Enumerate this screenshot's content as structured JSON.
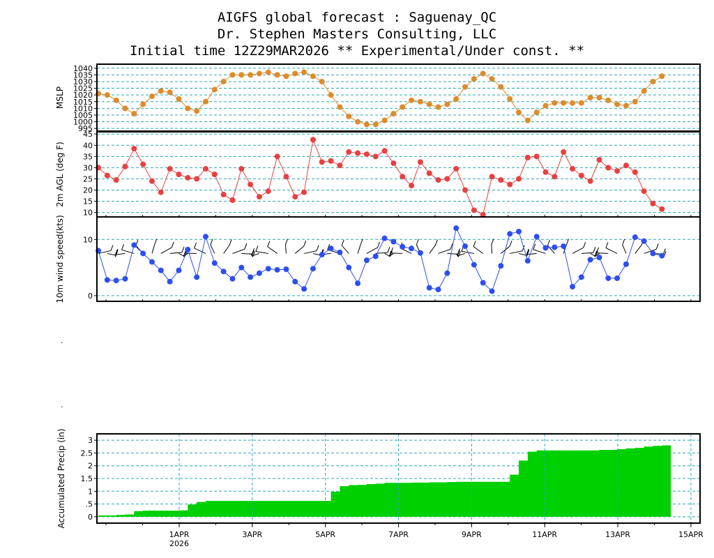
{
  "title": {
    "line1": "AIGFS global forecast : Saguenay_QC",
    "line2": "Dr. Stephen Masters Consulting, LLC",
    "line3": "Initial time 12Z29MAR2026  ** Experimental/Under const. **"
  },
  "colors": {
    "mslp": "#dc8c2c",
    "temp": "#e84040",
    "wind": "#2d4ef0",
    "precip": "#00d000",
    "grid": "#29a8b5",
    "frame": "#000000"
  },
  "stray_marks": [
    ".",
    "."
  ],
  "chart_data": [
    {
      "type": "line",
      "panel": "mslp",
      "ylabel": "MSLP",
      "ylim": [
        993,
        1043
      ],
      "yticks": [
        "995",
        "1000",
        "1005",
        "1010",
        "1015",
        "1020",
        "1025",
        "1030",
        "1035",
        "1040"
      ],
      "grid": true,
      "values": [
        1021,
        1020,
        1016,
        1010,
        1006,
        1013,
        1019,
        1023,
        1022,
        1017,
        1010,
        1008,
        1015,
        1024,
        1030,
        1035,
        1035,
        1035,
        1036,
        1037,
        1035,
        1034,
        1036,
        1037,
        1034,
        1030,
        1020,
        1011,
        1004,
        1000,
        998,
        998,
        1001,
        1006,
        1011,
        1016,
        1015,
        1013,
        1011,
        1013,
        1017,
        1026,
        1032,
        1036,
        1032,
        1026,
        1017,
        1007,
        1001,
        1007,
        1012,
        1014,
        1014,
        1014,
        1014,
        1018,
        1018,
        1016,
        1013,
        1012,
        1015,
        1023,
        1030,
        1034
      ]
    },
    {
      "type": "line",
      "panel": "temperature",
      "ylabel": "2m AGL (deg F)",
      "ylim": [
        8,
        46
      ],
      "yticks": [
        "10",
        "15",
        "20",
        "25",
        "30",
        "35",
        "40",
        "45"
      ],
      "grid": true,
      "values": [
        30,
        26.5,
        24.5,
        30.5,
        38.5,
        31.5,
        24,
        19,
        29.5,
        27,
        25.5,
        25,
        29.5,
        27,
        18,
        15.5,
        29.5,
        22.5,
        17,
        19.5,
        35,
        26,
        17,
        19,
        42.5,
        32.5,
        33,
        31,
        37,
        36.5,
        36,
        35,
        37.5,
        32,
        26,
        22,
        32.5,
        27.5,
        24.5,
        25,
        29.5,
        20,
        11,
        9,
        26,
        24.5,
        22.5,
        25,
        34.5,
        35,
        28,
        26,
        37,
        29.5,
        26.5,
        24,
        33.5,
        30,
        28.5,
        31,
        28,
        19.5,
        14,
        11.5
      ]
    },
    {
      "type": "line",
      "panel": "wind",
      "ylabel": "10m wind speed(kts)",
      "ylim": [
        -1,
        14
      ],
      "yticks": [
        "0",
        "10"
      ],
      "grid": true,
      "values": [
        8,
        2.8,
        2.7,
        3,
        9,
        7.5,
        6,
        4.5,
        2.5,
        4.5,
        8.2,
        3.3,
        10.5,
        5.8,
        4.3,
        3,
        5,
        3.3,
        4,
        4.8,
        4.6,
        4.7,
        2.5,
        1.2,
        4.8,
        7.3,
        8.4,
        7.7,
        5,
        2.2,
        6.3,
        7,
        10.2,
        9.6,
        8.7,
        8.4,
        7.6,
        1.4,
        1.1,
        4,
        12,
        8.8,
        5.5,
        2.3,
        0.8,
        5.3,
        11,
        11.4,
        6.2,
        10.5,
        8.5,
        8.6,
        8.8,
        1.6,
        3.3,
        6.4,
        6.8,
        3.1,
        3.1,
        5.6,
        10.4,
        9.7,
        7.5,
        7.1
      ],
      "wind_barbs": true
    },
    {
      "type": "area",
      "panel": "precip",
      "ylabel": "Accumulated Precip (in)",
      "ylim": [
        -0.25,
        3.25
      ],
      "yticks": [
        "0",
        ".5",
        "1",
        "1.5",
        "2",
        "2.5",
        "3"
      ],
      "grid": true,
      "step": true,
      "values": [
        0.05,
        0.05,
        0.07,
        0.09,
        0.22,
        0.24,
        0.24,
        0.24,
        0.24,
        0.25,
        0.48,
        0.58,
        0.62,
        0.62,
        0.62,
        0.62,
        0.62,
        0.62,
        0.62,
        0.62,
        0.62,
        0.62,
        0.62,
        0.62,
        0.62,
        0.62,
        0.98,
        1.2,
        1.24,
        1.25,
        1.28,
        1.3,
        1.33,
        1.33,
        1.33,
        1.34,
        1.34,
        1.35,
        1.35,
        1.36,
        1.37,
        1.37,
        1.37,
        1.37,
        1.37,
        1.37,
        1.65,
        2.2,
        2.55,
        2.6,
        2.6,
        2.6,
        2.6,
        2.6,
        2.6,
        2.6,
        2.62,
        2.62,
        2.65,
        2.68,
        2.7,
        2.75,
        2.78,
        2.8
      ],
      "xlabels": [
        {
          "label": "1APR",
          "sub": "2026",
          "day": 2.25
        },
        {
          "label": "3APR",
          "sub": "",
          "day": 4.25
        },
        {
          "label": "5APR",
          "sub": "",
          "day": 6.25
        },
        {
          "label": "7APR",
          "sub": "",
          "day": 8.25
        },
        {
          "label": "9APR",
          "sub": "",
          "day": 10.25
        },
        {
          "label": "11APR",
          "sub": "",
          "day": 12.25
        },
        {
          "label": "13APR",
          "sub": "",
          "day": 14.25
        },
        {
          "label": "15APR",
          "sub": "",
          "day": 16.25
        }
      ]
    }
  ]
}
